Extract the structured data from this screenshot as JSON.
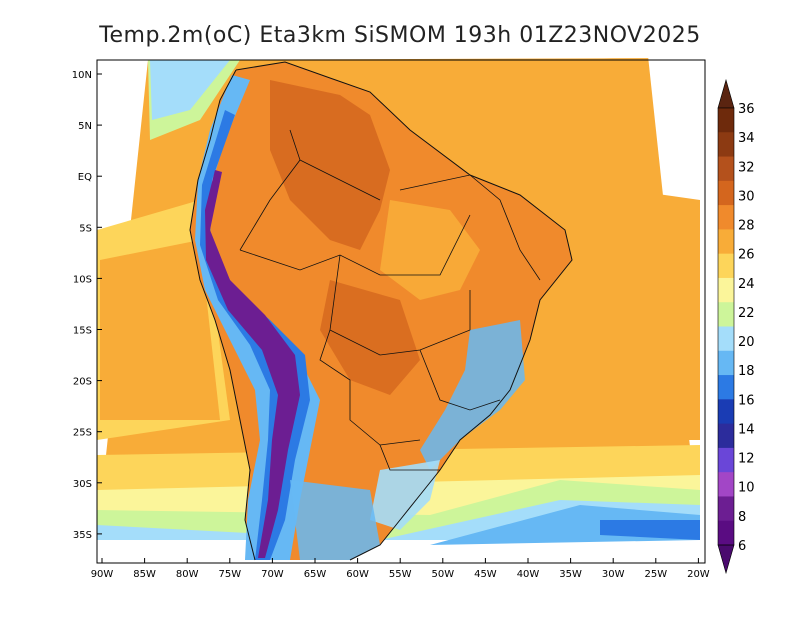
{
  "title": "Temp.2m(oC) Eta3km SiSMOM 193h 01Z23NOV2025",
  "lat_labels": [
    "10N",
    "5N",
    "EQ",
    "5S",
    "10S",
    "15S",
    "20S",
    "25S",
    "30S",
    "35S"
  ],
  "lon_labels": [
    "90W",
    "85W",
    "80W",
    "75W",
    "70W",
    "65W",
    "60W",
    "55W",
    "50W",
    "45W",
    "40W",
    "35W",
    "30W",
    "25W",
    "20W"
  ],
  "colorbar": {
    "labels": [
      "36",
      "34",
      "32",
      "30",
      "28",
      "26",
      "24",
      "22",
      "20",
      "18",
      "16",
      "14",
      "12",
      "10",
      "8",
      "6"
    ],
    "colors": [
      "#6e2a0c",
      "#8c3a12",
      "#b4511c",
      "#d4661e",
      "#f08a2c",
      "#f8ac38",
      "#fdd55a",
      "#fbf59a",
      "#cdf59a",
      "#a4ddfa",
      "#66b8f4",
      "#2c7ae4",
      "#1a3cb4",
      "#2c2c9c",
      "#6a46d8",
      "#a246c6",
      "#6c1e92",
      "#5a0c82"
    ],
    "top_color": "#5a2410",
    "bottom_color": "#4a0a6e"
  }
}
